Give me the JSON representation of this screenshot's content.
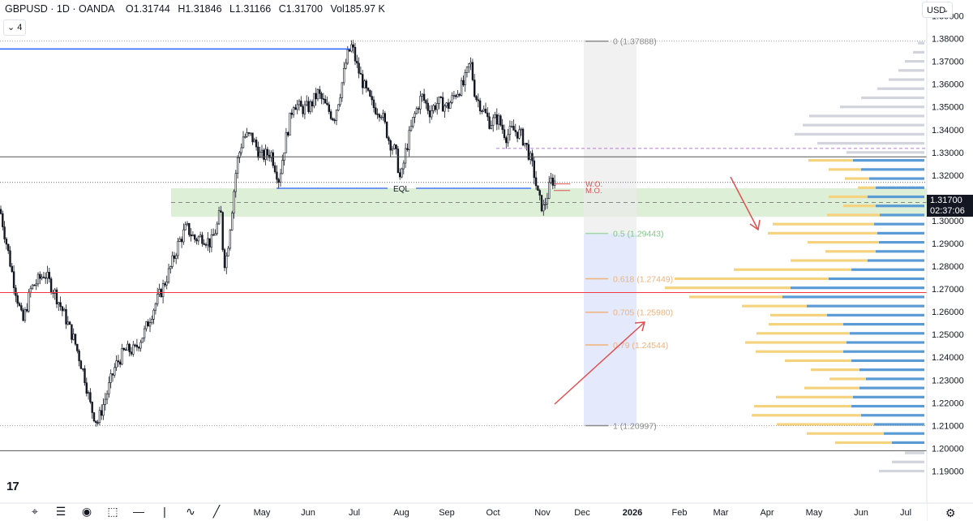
{
  "header": {
    "symbol": "GBPUSD · 1D · OANDA",
    "open": "O1.31744",
    "high": "H1.31846",
    "low": "L1.31166",
    "close": "C1.31700",
    "volume": "Vol185.97 K",
    "indicator_count": "4",
    "chevron": "⌄"
  },
  "currency_selector": {
    "label": "USD",
    "chevron": "⌄"
  },
  "price_tag": {
    "price": "1.31700",
    "countdown": "02:37:06"
  },
  "logo": "17",
  "toolbar_icons": [
    "cursor-icon",
    "sliders-icon",
    "play-icon",
    "selection-box-icon",
    "horizontal-line-icon",
    "vertical-line-icon",
    "brush-icon",
    "trend-line-icon"
  ],
  "colors": {
    "candle": "#131722",
    "blue_line": "#2962ff",
    "red_line": "#f23645",
    "zone_green": "#d7ecd0",
    "fib_gray": "#ebebeb",
    "fib_blue": "#dde4fa",
    "vp_gray": "#d1d4dc",
    "vp_yellow": "#f5d37e",
    "vp_blue": "#5b9bd5",
    "fib_green": "#a5d6a7",
    "fib_orange": "#f0b27a",
    "fib_gray_text": "#8a8a8a"
  },
  "chart_data": {
    "type": "candlestick",
    "instrument": "GBPUSD",
    "timeframe": "1D",
    "ylim": [
      1.1866,
      1.39696
    ],
    "y_ticks": [
      "1.39000",
      "1.38000",
      "1.37000",
      "1.36000",
      "1.35000",
      "1.34000",
      "1.33000",
      "1.32000",
      "1.30000",
      "1.29000",
      "1.28000",
      "1.27000",
      "1.26000",
      "1.25000",
      "1.24000",
      "1.23000",
      "1.22000",
      "1.21000",
      "1.20000",
      "1.19000"
    ],
    "x_ticks": [
      "May",
      "Jun",
      "Jul",
      "Aug",
      "Sep",
      "Oct",
      "Nov",
      "Dec",
      "2026",
      "Feb",
      "Mar",
      "Apr",
      "May",
      "Jun",
      "Jul"
    ],
    "price_path": [
      [
        0,
        1.305
      ],
      [
        8,
        1.29
      ],
      [
        16,
        1.275
      ],
      [
        28,
        1.255
      ],
      [
        38,
        1.27
      ],
      [
        55,
        1.277
      ],
      [
        68,
        1.268
      ],
      [
        80,
        1.258
      ],
      [
        92,
        1.247
      ],
      [
        104,
        1.232
      ],
      [
        112,
        1.218
      ],
      [
        120,
        1.211
      ],
      [
        130,
        1.222
      ],
      [
        142,
        1.236
      ],
      [
        154,
        1.243
      ],
      [
        166,
        1.243
      ],
      [
        178,
        1.251
      ],
      [
        190,
        1.262
      ],
      [
        200,
        1.27
      ],
      [
        210,
        1.279
      ],
      [
        220,
        1.29
      ],
      [
        230,
        1.297
      ],
      [
        240,
        1.292
      ],
      [
        250,
        1.293
      ],
      [
        260,
        1.29
      ],
      [
        268,
        1.298
      ],
      [
        272,
        1.305
      ],
      [
        276,
        1.281
      ],
      [
        280,
        1.285
      ],
      [
        286,
        1.305
      ],
      [
        292,
        1.325
      ],
      [
        300,
        1.337
      ],
      [
        310,
        1.337
      ],
      [
        322,
        1.328
      ],
      [
        334,
        1.33
      ],
      [
        344,
        1.318
      ],
      [
        352,
        1.335
      ],
      [
        362,
        1.352
      ],
      [
        372,
        1.349
      ],
      [
        382,
        1.35
      ],
      [
        392,
        1.356
      ],
      [
        402,
        1.35
      ],
      [
        412,
        1.345
      ],
      [
        420,
        1.357
      ],
      [
        428,
        1.372
      ],
      [
        434,
        1.377
      ],
      [
        440,
        1.368
      ],
      [
        450,
        1.358
      ],
      [
        460,
        1.35
      ],
      [
        470,
        1.348
      ],
      [
        480,
        1.335
      ],
      [
        488,
        1.33
      ],
      [
        494,
        1.317
      ],
      [
        500,
        1.33
      ],
      [
        510,
        1.345
      ],
      [
        520,
        1.355
      ],
      [
        530,
        1.348
      ],
      [
        540,
        1.352
      ],
      [
        552,
        1.35
      ],
      [
        562,
        1.356
      ],
      [
        572,
        1.36
      ],
      [
        580,
        1.37
      ],
      [
        586,
        1.355
      ],
      [
        594,
        1.35
      ],
      [
        604,
        1.343
      ],
      [
        614,
        1.345
      ],
      [
        624,
        1.337
      ],
      [
        632,
        1.34
      ],
      [
        642,
        1.338
      ],
      [
        650,
        1.332
      ],
      [
        658,
        1.322
      ],
      [
        664,
        1.31
      ],
      [
        670,
        1.305
      ],
      [
        674,
        1.31
      ],
      [
        680,
        1.318
      ],
      [
        685,
        1.317
      ]
    ],
    "levels": [
      {
        "name": "blue-resistance",
        "price": 1.37542,
        "color": "blue"
      },
      {
        "name": "eql",
        "label": "EQL",
        "price": 1.31424,
        "color": "blue"
      },
      {
        "name": "black-line-upper",
        "price": 1.32808
      },
      {
        "name": "red-support",
        "price": 1.26844,
        "color": "red"
      },
      {
        "name": "black-line-lower",
        "price": 1.19893
      },
      {
        "name": "purple-dashed",
        "price": 1.33175
      },
      {
        "name": "demand-zone-midline",
        "price": 1.30797
      }
    ],
    "markers": [
      {
        "label": "W.O.",
        "price": 1.31617
      },
      {
        "label": "M.O.",
        "price": 1.31327
      }
    ],
    "demand_zone": {
      "top": 1.31424,
      "bottom": 1.30171
    },
    "fibonacci": [
      {
        "ratio": "0",
        "label": "0 (1.37888)",
        "price": 1.37888
      },
      {
        "ratio": "0.5",
        "label": "0.5 (1.29443)",
        "price": 1.29443
      },
      {
        "ratio": "0.618",
        "label": "0.618 (1.27449)",
        "price": 1.27449
      },
      {
        "ratio": "0.705",
        "label": "0.705 (1.25980)",
        "price": 1.2598
      },
      {
        "ratio": "0.79",
        "label": "0.79 (1.24544)",
        "price": 1.24544
      },
      {
        "ratio": "1",
        "label": "1 (1.20997)",
        "price": 1.20997
      }
    ],
    "volume_profile_rows": [
      [
        1.378,
        8,
        0,
        0
      ],
      [
        1.374,
        14,
        0,
        0
      ],
      [
        1.37,
        24,
        0,
        0
      ],
      [
        1.366,
        32,
        0,
        0
      ],
      [
        1.362,
        44,
        0,
        0
      ],
      [
        1.358,
        58,
        0,
        0
      ],
      [
        1.354,
        78,
        0,
        0
      ],
      [
        1.35,
        104,
        0,
        0
      ],
      [
        1.346,
        142,
        0,
        0
      ],
      [
        1.342,
        150,
        0,
        0
      ],
      [
        1.338,
        160,
        0,
        0
      ],
      [
        1.334,
        132,
        0,
        0
      ],
      [
        1.33,
        96,
        0,
        0
      ],
      [
        1.3265,
        0,
        55,
        88
      ],
      [
        1.3225,
        0,
        40,
        78
      ],
      [
        1.3185,
        0,
        30,
        68
      ],
      [
        1.3145,
        0,
        22,
        60
      ],
      [
        1.3105,
        0,
        48,
        70
      ],
      [
        1.3065,
        0,
        40,
        60
      ],
      [
        1.3025,
        0,
        65,
        55
      ],
      [
        1.2985,
        0,
        125,
        62
      ],
      [
        1.2945,
        0,
        135,
        58
      ],
      [
        1.2905,
        0,
        88,
        56
      ],
      [
        1.2865,
        0,
        62,
        60
      ],
      [
        1.2825,
        0,
        95,
        70
      ],
      [
        1.2785,
        0,
        145,
        90
      ],
      [
        1.2745,
        0,
        190,
        118
      ],
      [
        1.2705,
        0,
        155,
        165
      ],
      [
        1.2665,
        0,
        115,
        175
      ],
      [
        1.2625,
        0,
        80,
        145
      ],
      [
        1.2585,
        0,
        70,
        120
      ],
      [
        1.2545,
        0,
        92,
        100
      ],
      [
        1.2505,
        0,
        115,
        92
      ],
      [
        1.2465,
        0,
        125,
        96
      ],
      [
        1.2425,
        0,
        108,
        100
      ],
      [
        1.2385,
        0,
        82,
        90
      ],
      [
        1.2345,
        0,
        60,
        80
      ],
      [
        1.2305,
        0,
        45,
        72
      ],
      [
        1.2265,
        0,
        68,
        80
      ],
      [
        1.2225,
        0,
        95,
        88
      ],
      [
        1.2185,
        0,
        120,
        90
      ],
      [
        1.2145,
        0,
        135,
        78
      ],
      [
        1.2105,
        0,
        120,
        62
      ],
      [
        1.2065,
        0,
        95,
        50
      ],
      [
        1.2025,
        0,
        70,
        40
      ],
      [
        1.198,
        24,
        0,
        0
      ],
      [
        1.194,
        40,
        0,
        0
      ],
      [
        1.19,
        56,
        0,
        0
      ]
    ]
  }
}
